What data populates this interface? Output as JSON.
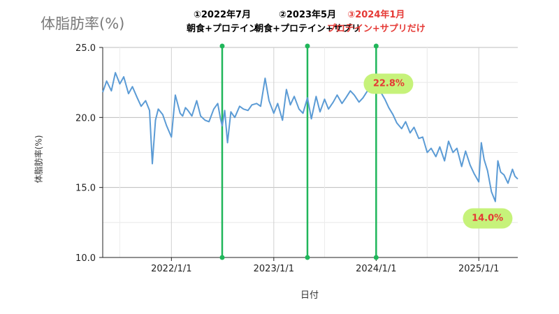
{
  "chart_data": {
    "type": "line",
    "title": "体脂肪率(%)",
    "xlabel": "日付",
    "ylabel": "体脂肪率(%)",
    "ylim": [
      10.0,
      25.0
    ],
    "xlim": [
      "2021-05-01",
      "2025-05-20"
    ],
    "yticks": [
      "10.0",
      "15.0",
      "20.0",
      "25.0"
    ],
    "xticks": [
      {
        "date": "2022-01-01",
        "label": "2022/1/1"
      },
      {
        "date": "2023-01-01",
        "label": "2023/1/1"
      },
      {
        "date": "2024-01-01",
        "label": "2024/1/1"
      },
      {
        "date": "2025-01-01",
        "label": "2025/1/1"
      }
    ],
    "grid": true,
    "line_color": "#5b9bd5",
    "series": [
      {
        "x": [
          "2021-05-01",
          "2021-05-15",
          "2021-06-01",
          "2021-06-15",
          "2021-07-01",
          "2021-07-15",
          "2021-08-01",
          "2021-08-15",
          "2021-09-01",
          "2021-09-15",
          "2021-10-01",
          "2021-10-15",
          "2021-10-25",
          "2021-11-05",
          "2021-11-15",
          "2021-12-01",
          "2021-12-15",
          "2022-01-01",
          "2022-01-15",
          "2022-02-01",
          "2022-02-10",
          "2022-02-20",
          "2022-03-01",
          "2022-03-15",
          "2022-04-01",
          "2022-04-15",
          "2022-05-01",
          "2022-05-15",
          "2022-06-01",
          "2022-06-15",
          "2022-06-25",
          "2022-07-01",
          "2022-07-10",
          "2022-07-20",
          "2022-08-01",
          "2022-08-15",
          "2022-09-01",
          "2022-09-15",
          "2022-10-01",
          "2022-10-15",
          "2022-11-01",
          "2022-11-15",
          "2022-12-01",
          "2022-12-15",
          "2023-01-01",
          "2023-01-15",
          "2023-02-01",
          "2023-02-15",
          "2023-03-01",
          "2023-03-15",
          "2023-04-01",
          "2023-04-15",
          "2023-05-01",
          "2023-05-15",
          "2023-06-01",
          "2023-06-15",
          "2023-07-01",
          "2023-07-15",
          "2023-08-01",
          "2023-08-15",
          "2023-09-01",
          "2023-09-15",
          "2023-10-01",
          "2023-10-15",
          "2023-11-01",
          "2023-11-15",
          "2023-12-01",
          "2023-12-15",
          "2024-01-01",
          "2024-01-15",
          "2024-02-01",
          "2024-02-15",
          "2024-03-01",
          "2024-03-15",
          "2024-04-01",
          "2024-04-15",
          "2024-05-01",
          "2024-05-15",
          "2024-06-01",
          "2024-06-15",
          "2024-07-01",
          "2024-07-15",
          "2024-08-01",
          "2024-08-15",
          "2024-09-01",
          "2024-09-15",
          "2024-10-01",
          "2024-10-15",
          "2024-11-01",
          "2024-11-15",
          "2024-12-01",
          "2024-12-15",
          "2025-01-01",
          "2025-01-10",
          "2025-01-20",
          "2025-02-01",
          "2025-02-15",
          "2025-03-01",
          "2025-03-10",
          "2025-03-20",
          "2025-04-01",
          "2025-04-15",
          "2025-05-01",
          "2025-05-10",
          "2025-05-20"
        ],
        "y": [
          21.8,
          22.6,
          21.9,
          23.2,
          22.4,
          22.9,
          21.7,
          22.2,
          21.4,
          20.8,
          21.2,
          20.5,
          16.7,
          19.8,
          20.6,
          20.2,
          19.4,
          18.6,
          21.6,
          20.3,
          20.1,
          20.7,
          20.5,
          20.1,
          21.2,
          20.1,
          19.8,
          19.7,
          20.6,
          21.0,
          19.9,
          19.4,
          20.5,
          18.2,
          20.4,
          20.0,
          20.8,
          20.6,
          20.5,
          20.9,
          21.0,
          20.8,
          22.8,
          21.2,
          20.3,
          21.0,
          19.8,
          22.0,
          20.9,
          21.5,
          20.6,
          20.3,
          21.4,
          19.9,
          21.5,
          20.4,
          21.3,
          20.6,
          21.1,
          21.6,
          21.0,
          21.4,
          21.9,
          21.6,
          21.1,
          21.4,
          21.9,
          22.3,
          22.8,
          21.9,
          21.3,
          20.7,
          20.2,
          19.6,
          19.2,
          19.7,
          18.9,
          19.3,
          18.5,
          18.6,
          17.5,
          17.8,
          17.2,
          17.9,
          16.9,
          18.3,
          17.5,
          17.8,
          16.5,
          17.6,
          16.6,
          16.0,
          15.4,
          18.2,
          17.0,
          16.2,
          14.7,
          14.0,
          16.9,
          16.1,
          15.9,
          15.3,
          16.3,
          15.8,
          15.6
        ]
      }
    ],
    "event_lines": [
      {
        "date": "2022-07-01",
        "label1": "①2022年7月",
        "label2": "朝食+プロテイン",
        "color": "#000000"
      },
      {
        "date": "2023-05-01",
        "label1": "②2023年5月",
        "label2": "朝食+プロテイン+サプリ",
        "color": "#000000"
      },
      {
        "date": "2024-01-01",
        "label1": "③2024年1月",
        "label2": "プロテイン+サプリだけ",
        "color": "#e53935"
      }
    ],
    "event_line_color": "#20b65a",
    "annotations": [
      {
        "text": "22.8%",
        "date": "2024-02-15",
        "y": 22.4
      },
      {
        "text": "14.0%",
        "date": "2025-02-01",
        "y": 12.8
      }
    ]
  }
}
